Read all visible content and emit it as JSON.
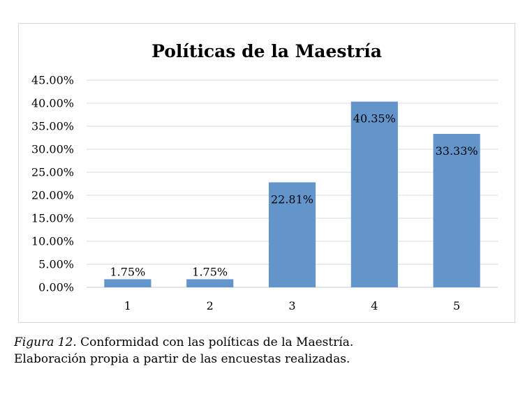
{
  "chart_data": {
    "type": "bar",
    "title": "Políticas de la Maestría",
    "categories": [
      "1",
      "2",
      "3",
      "4",
      "5"
    ],
    "values": [
      1.75,
      1.75,
      22.81,
      40.35,
      33.33
    ],
    "value_labels": [
      "1.75%",
      "1.75%",
      "22.81%",
      "40.35%",
      "33.33%"
    ],
    "y_ticks": [
      "0.00%",
      "5.00%",
      "10.00%",
      "15.00%",
      "20.00%",
      "25.00%",
      "30.00%",
      "35.00%",
      "40.00%",
      "45.00%"
    ],
    "ylim": [
      0,
      45
    ],
    "grid": true,
    "bar_color": "#6395CB",
    "xlabel": "",
    "ylabel": ""
  },
  "caption": {
    "figure_label": "Figura 12.",
    "line1_text": " Conformidad con las políticas de la Maestría.",
    "line2_text": "Elaboración propia a partir de las encuestas realizadas."
  }
}
